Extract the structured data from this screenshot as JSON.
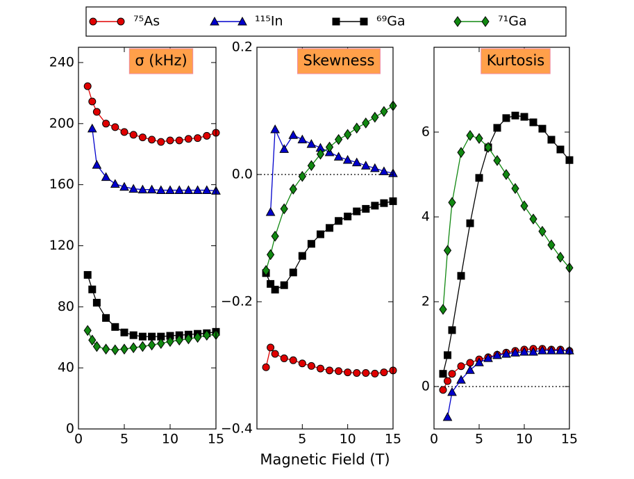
{
  "chart_data": [
    {
      "type": "line",
      "title": "σ (kHz)",
      "xlim": [
        0,
        15
      ],
      "xticks": [
        0,
        5,
        10,
        15
      ],
      "ylim": [
        0,
        250
      ],
      "yticks": [
        0,
        40,
        80,
        120,
        160,
        200,
        240
      ],
      "series": [
        {
          "name": "⁷⁵As",
          "color": "#e00000",
          "marker": "circle",
          "x": [
            1,
            1.5,
            2,
            3,
            4,
            5,
            6,
            7,
            8,
            9,
            10,
            11,
            12,
            13,
            14,
            15
          ],
          "values": [
            224.5,
            214.5,
            207.7,
            200,
            197.7,
            194.5,
            192.7,
            191,
            189.5,
            188,
            189,
            189,
            190,
            190.5,
            192,
            194
          ]
        },
        {
          "name": "¹¹⁵In",
          "color": "#0000cc",
          "marker": "triangle",
          "x": [
            1.5,
            2,
            3,
            4,
            5,
            6,
            7,
            8,
            9,
            10,
            11,
            12,
            13,
            14,
            15
          ],
          "values": [
            196.8,
            173,
            165,
            160.5,
            158.6,
            157.3,
            156.8,
            156.8,
            156.4,
            156.4,
            156.4,
            156.4,
            156.4,
            156.4,
            156
          ]
        },
        {
          "name": "⁶⁹Ga",
          "color": "#000000",
          "marker": "square",
          "x": [
            1,
            1.5,
            2,
            3,
            4,
            5,
            6,
            7,
            8,
            9,
            10,
            11,
            12,
            13,
            14,
            15
          ],
          "values": [
            100.9,
            91.4,
            82.7,
            72.7,
            66.8,
            63.2,
            61.4,
            60.5,
            60.5,
            60.5,
            61,
            61.4,
            61.8,
            62.3,
            62.7,
            63.6
          ]
        },
        {
          "name": "⁷¹Ga",
          "color": "#118811",
          "marker": "diamond",
          "x": [
            1,
            1.5,
            2,
            3,
            4,
            5,
            6,
            7,
            8,
            9,
            10,
            11,
            12,
            13,
            14,
            15
          ],
          "values": [
            64.5,
            58.2,
            54,
            52.3,
            51.8,
            52.3,
            53.2,
            54,
            55,
            56,
            57.3,
            58.2,
            59,
            60,
            61.4,
            61.8
          ]
        }
      ]
    },
    {
      "type": "line",
      "title": "Skewness",
      "xlabel": "Magnetic Field (T)",
      "xlim": [
        0,
        15
      ],
      "xticks": [
        5,
        10,
        15
      ],
      "ylim": [
        -0.4,
        0.2
      ],
      "yticks": [
        {
          "value": -0.4,
          "label": "−0.4"
        },
        {
          "value": -0.2,
          "label": "−0.2"
        },
        {
          "value": 0,
          "label": "0.0"
        },
        0.2
      ],
      "hline": 0,
      "series": [
        {
          "color": "#e00000",
          "marker": "circle",
          "x": [
            1,
            1.5,
            2,
            3,
            4,
            5,
            6,
            7,
            8,
            9,
            10,
            11,
            12,
            13,
            14,
            15
          ],
          "values": [
            -0.303,
            -0.272,
            -0.282,
            -0.289,
            -0.292,
            -0.297,
            -0.301,
            -0.305,
            -0.308,
            -0.309,
            -0.311,
            -0.312,
            -0.312,
            -0.313,
            -0.311,
            -0.308
          ]
        },
        {
          "color": "#0000cc",
          "marker": "triangle",
          "x": [
            1.5,
            2,
            3,
            4,
            5,
            6,
            7,
            8,
            9,
            10,
            11,
            12,
            13,
            14,
            15
          ],
          "values": [
            -0.059,
            0.071,
            0.04,
            0.062,
            0.055,
            0.048,
            0.042,
            0.035,
            0.028,
            0.023,
            0.019,
            0.014,
            0.01,
            0.005,
            0.002
          ]
        },
        {
          "color": "#000000",
          "marker": "square",
          "x": [
            1,
            1.5,
            2,
            3,
            4,
            5,
            6,
            7,
            8,
            9,
            10,
            11,
            12,
            13,
            14,
            15
          ],
          "values": [
            -0.155,
            -0.172,
            -0.181,
            -0.174,
            -0.154,
            -0.128,
            -0.109,
            -0.094,
            -0.084,
            -0.073,
            -0.066,
            -0.058,
            -0.054,
            -0.049,
            -0.045,
            -0.042
          ]
        },
        {
          "color": "#118811",
          "marker": "diamond",
          "x": [
            1,
            1.5,
            2,
            3,
            4,
            5,
            6,
            7,
            8,
            9,
            10,
            11,
            12,
            13,
            14,
            15
          ],
          "values": [
            -0.151,
            -0.126,
            -0.097,
            -0.054,
            -0.023,
            -0.003,
            0.014,
            0.032,
            0.043,
            0.055,
            0.063,
            0.073,
            0.081,
            0.09,
            0.099,
            0.108
          ]
        }
      ]
    },
    {
      "type": "line",
      "title": "Kurtosis",
      "xlim": [
        0,
        15
      ],
      "xticks": [
        0,
        5,
        10,
        15
      ],
      "ylim": [
        -1,
        8
      ],
      "yticks": [
        0,
        2,
        4,
        6
      ],
      "hline": 0,
      "series": [
        {
          "color": "#e00000",
          "marker": "circle",
          "x": [
            1,
            1.5,
            2,
            3,
            4,
            5,
            6,
            7,
            8,
            9,
            10,
            11,
            12,
            13,
            14,
            15
          ],
          "values": [
            -0.08,
            0.13,
            0.3,
            0.48,
            0.56,
            0.64,
            0.69,
            0.75,
            0.8,
            0.84,
            0.87,
            0.89,
            0.89,
            0.87,
            0.87,
            0.84
          ]
        },
        {
          "color": "#0000cc",
          "marker": "triangle",
          "x": [
            1.5,
            2,
            3,
            4,
            5,
            6,
            7,
            8,
            9,
            10,
            11,
            12,
            13,
            14,
            15
          ],
          "values": [
            -0.72,
            -0.13,
            0.16,
            0.39,
            0.57,
            0.67,
            0.74,
            0.77,
            0.8,
            0.82,
            0.82,
            0.85,
            0.85,
            0.85,
            0.85
          ]
        },
        {
          "color": "#000000",
          "marker": "square",
          "x": [
            1,
            1.5,
            2,
            3,
            4,
            5,
            6,
            7,
            8,
            9,
            10,
            11,
            12,
            13,
            14,
            15
          ],
          "values": [
            0.3,
            0.74,
            1.33,
            2.61,
            3.85,
            4.92,
            5.64,
            6.1,
            6.33,
            6.39,
            6.36,
            6.23,
            6.08,
            5.82,
            5.59,
            5.34
          ]
        },
        {
          "color": "#118811",
          "marker": "diamond",
          "x": [
            1,
            1.5,
            2,
            3,
            4,
            5,
            6,
            7,
            8,
            9,
            10,
            11,
            12,
            13,
            14,
            15
          ],
          "values": [
            1.82,
            3.21,
            4.34,
            5.52,
            5.92,
            5.85,
            5.64,
            5.33,
            5,
            4.67,
            4.26,
            3.95,
            3.66,
            3.34,
            3.05,
            2.8
          ]
        }
      ]
    }
  ]
}
